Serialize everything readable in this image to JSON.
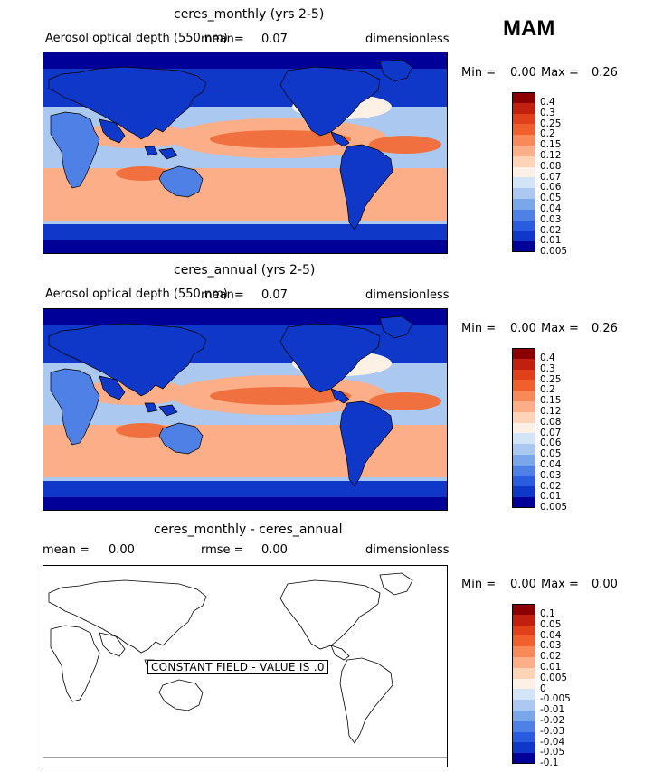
{
  "season": "MAM",
  "panels": [
    {
      "title": "ceres_monthly (yrs 2-5)",
      "variable": "Aerosol optical depth (550 nm)",
      "mean_label": "mean=",
      "mean_value": "0.07",
      "units": "dimensionless",
      "min_label": "Min =",
      "min_value": "0.00",
      "max_label": "Max =",
      "max_value": "0.26"
    },
    {
      "title": "ceres_annual (yrs 2-5)",
      "variable": "Aerosol optical depth (550 nm)",
      "mean_label": "mean=",
      "mean_value": "0.07",
      "units": "dimensionless",
      "min_label": "Min =",
      "min_value": "0.00",
      "max_label": "Max =",
      "max_value": "0.26"
    },
    {
      "title": "ceres_monthly - ceres_annual",
      "mean_label": "mean =",
      "mean_value": "0.00",
      "rmse_label": "rmse =",
      "rmse_value": "0.00",
      "units": "dimensionless",
      "min_label": "Min =",
      "min_value": "0.00",
      "max_label": "Max =",
      "max_value": "0.00",
      "constant_field_note": "CONSTANT FIELD - VALUE IS .0"
    }
  ],
  "colorbar_field": {
    "levels": [
      "0.4",
      "0.3",
      "0.25",
      "0.2",
      "0.15",
      "0.12",
      "0.08",
      "0.07",
      "0.06",
      "0.05",
      "0.04",
      "0.03",
      "0.02",
      "0.01",
      "0.005"
    ],
    "colors": [
      "#8b0000",
      "#c1200e",
      "#e0401a",
      "#f0602c",
      "#f78a58",
      "#fbae88",
      "#fdd4b8",
      "#fdf0e4",
      "#d2e4f8",
      "#aac8f0",
      "#7aa6ea",
      "#4f80e6",
      "#2a5ce0",
      "#1038c8",
      "#000099"
    ]
  },
  "colorbar_diff": {
    "levels": [
      "0.1",
      "0.05",
      "0.04",
      "0.03",
      "0.02",
      "0.01",
      "0.005",
      "0",
      "-0.005",
      "-0.01",
      "-0.02",
      "-0.03",
      "-0.04",
      "-0.05",
      "-0.1"
    ],
    "colors": [
      "#8b0000",
      "#c1200e",
      "#e0401a",
      "#f0602c",
      "#f78a58",
      "#fbae88",
      "#fdd4b8",
      "#fdf0e4",
      "#d2e4f8",
      "#aac8f0",
      "#7aa6ea",
      "#4f80e6",
      "#2a5ce0",
      "#1038c8",
      "#000099"
    ]
  },
  "map_colors": {
    "polar": "#000099",
    "deep_blue": "#1038c8",
    "mid_blue": "#4f80e6",
    "light_blue": "#aac8f0",
    "pale": "#fdf0e4",
    "peach": "#fbae88",
    "orange": "#f07040",
    "red": "#e0401a",
    "coast": "#000000"
  }
}
